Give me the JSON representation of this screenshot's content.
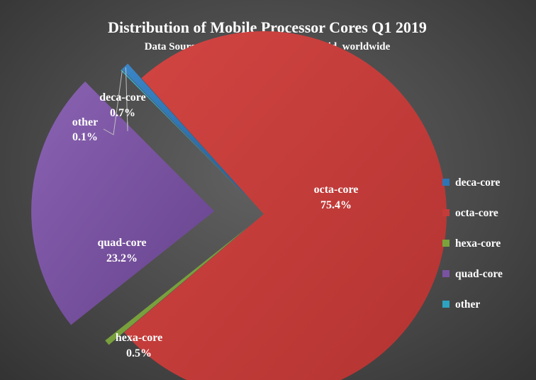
{
  "chart_data": {
    "type": "pie",
    "title": "Distribution of Mobile Processor Cores Q1 2019",
    "subtitle": "Data Source: Antutu Benchmark, Android, worldwide",
    "slices": [
      {
        "name": "deca-core",
        "value": 0.7,
        "label": "0.7%",
        "color": "#2e75b6"
      },
      {
        "name": "octa-core",
        "value": 75.4,
        "label": "75.4%",
        "color": "#c43c3a"
      },
      {
        "name": "hexa-core",
        "value": 0.5,
        "label": "0.5%",
        "color": "#7aa33c"
      },
      {
        "name": "quad-core",
        "value": 23.2,
        "label": "23.2%",
        "color": "#7953a1"
      },
      {
        "name": "other",
        "value": 0.1,
        "label": "0.1%",
        "color": "#2da3c1"
      }
    ],
    "exploded": [
      "deca-core",
      "hexa-core",
      "quad-core",
      "other"
    ],
    "legend_position": "right"
  }
}
